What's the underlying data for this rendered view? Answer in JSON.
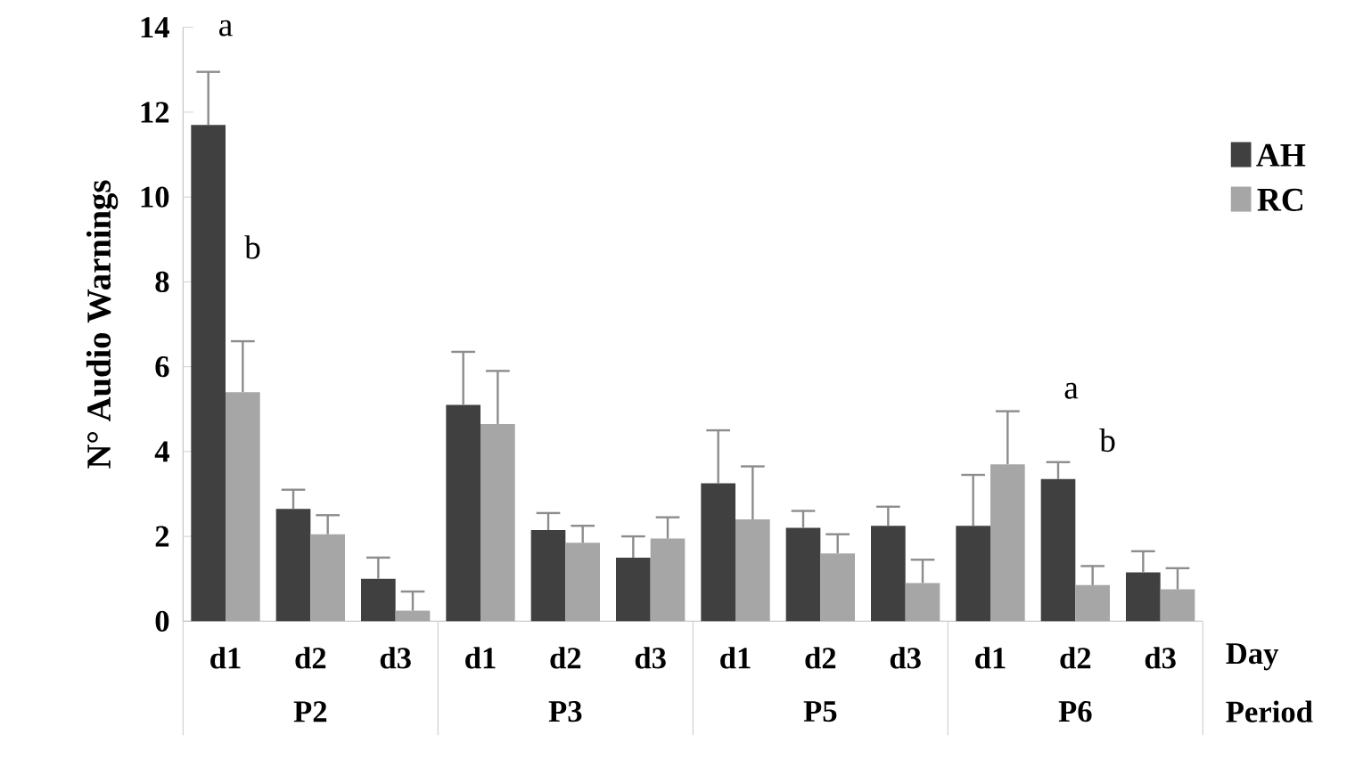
{
  "chart_data": {
    "type": "bar",
    "ylabel": "N° Audio Warnings",
    "xlabel": "Day",
    "categories": [
      "d1",
      "d2",
      "d3",
      "d1",
      "d2",
      "d3",
      "d1",
      "d2",
      "d3",
      "d1",
      "d2",
      "d3"
    ],
    "series": [
      {
        "name": "AH",
        "color": "#404040",
        "values": [
          11.7,
          2.65,
          1.0,
          5.1,
          2.15,
          1.5,
          3.25,
          2.2,
          2.25,
          2.25,
          3.35,
          1.15
        ],
        "errors": [
          1.25,
          0.45,
          0.5,
          1.25,
          0.4,
          0.5,
          1.25,
          0.4,
          0.45,
          1.2,
          0.4,
          0.5
        ]
      },
      {
        "name": "RC",
        "color": "#a6a6a6",
        "values": [
          5.4,
          2.05,
          0.25,
          4.65,
          1.85,
          1.95,
          2.4,
          1.6,
          0.9,
          3.7,
          0.85,
          0.75
        ],
        "errors": [
          1.2,
          0.45,
          0.45,
          1.25,
          0.4,
          0.5,
          1.25,
          0.45,
          0.55,
          1.25,
          0.45,
          0.5
        ]
      }
    ],
    "ylim": [
      0,
      14
    ],
    "yticks": [
      0,
      2,
      4,
      6,
      8,
      10,
      12,
      14
    ],
    "legend": "right",
    "grid": false,
    "annotations": [
      "P2",
      "P3",
      "P5",
      "P6",
      "Period",
      "a",
      "b",
      "a",
      "b"
    ]
  }
}
